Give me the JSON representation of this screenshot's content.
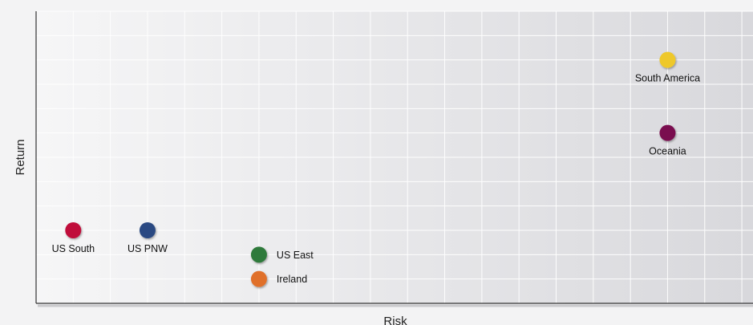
{
  "chart_data": {
    "type": "scatter",
    "xlabel": "Risk",
    "ylabel": "Return",
    "xlim": [
      0,
      19.3
    ],
    "ylim": [
      0,
      12
    ],
    "grid": true,
    "x_ticks_shown": false,
    "y_ticks_shown": false,
    "points": [
      {
        "label": "US South",
        "x": 1,
        "y": 3,
        "color": "#c0103a",
        "label_position": "below"
      },
      {
        "label": "US PNW",
        "x": 3,
        "y": 3,
        "color": "#2a4a82",
        "label_position": "below"
      },
      {
        "label": "US East",
        "x": 6,
        "y": 2,
        "color": "#2f7a3a",
        "label_position": "right"
      },
      {
        "label": "Ireland",
        "x": 6,
        "y": 1,
        "color": "#e0702a",
        "label_position": "right"
      },
      {
        "label": "South America",
        "x": 17,
        "y": 10,
        "color": "#eec82a",
        "label_position": "below"
      },
      {
        "label": "Oceania",
        "x": 17,
        "y": 7,
        "color": "#7a0a50",
        "label_position": "below"
      }
    ]
  }
}
